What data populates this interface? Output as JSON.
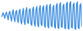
{
  "chart_data": {
    "type": "line",
    "color": "#3d8ee0",
    "tick_labels": false,
    "x": [
      0,
      1,
      2,
      3,
      4,
      5,
      6,
      7,
      8,
      9,
      10,
      11,
      12,
      13,
      14,
      15,
      16,
      17,
      18,
      19,
      20,
      21,
      22,
      23,
      24,
      25,
      26,
      27,
      28,
      29,
      30,
      31,
      32,
      33,
      34,
      35,
      36,
      37,
      38,
      39,
      40,
      41,
      42,
      43,
      44,
      45,
      46,
      47,
      48,
      49,
      50,
      51,
      52,
      53,
      54,
      55,
      56,
      57,
      58,
      59,
      60,
      61,
      62,
      63,
      64,
      65,
      66,
      67,
      68,
      69,
      70,
      71,
      72,
      73,
      74,
      75,
      76,
      77,
      78,
      79,
      80,
      81,
      82,
      83,
      84,
      85,
      86,
      87,
      88,
      89,
      90,
      91,
      92,
      93,
      94,
      95
    ],
    "values": [
      45,
      50,
      60,
      52,
      40,
      55,
      62,
      48,
      35,
      58,
      65,
      45,
      30,
      60,
      70,
      40,
      28,
      62,
      68,
      35,
      25,
      65,
      72,
      30,
      20,
      60,
      75,
      28,
      18,
      68,
      78,
      25,
      22,
      70,
      74,
      20,
      15,
      72,
      80,
      22,
      12,
      70,
      82,
      18,
      10,
      75,
      85,
      20,
      14,
      78,
      84,
      15,
      8,
      80,
      88,
      12,
      6,
      82,
      90,
      14,
      10,
      78,
      86,
      10,
      5,
      85,
      92,
      8,
      4,
      88,
      95,
      10,
      8,
      84,
      90,
      6,
      3,
      90,
      97,
      5,
      2,
      92,
      100,
      8,
      6,
      88,
      94,
      4,
      0,
      90,
      98,
      6,
      4,
      86,
      92,
      10
    ],
    "xlim": [
      0,
      95
    ],
    "ylim": [
      0,
      100
    ]
  }
}
